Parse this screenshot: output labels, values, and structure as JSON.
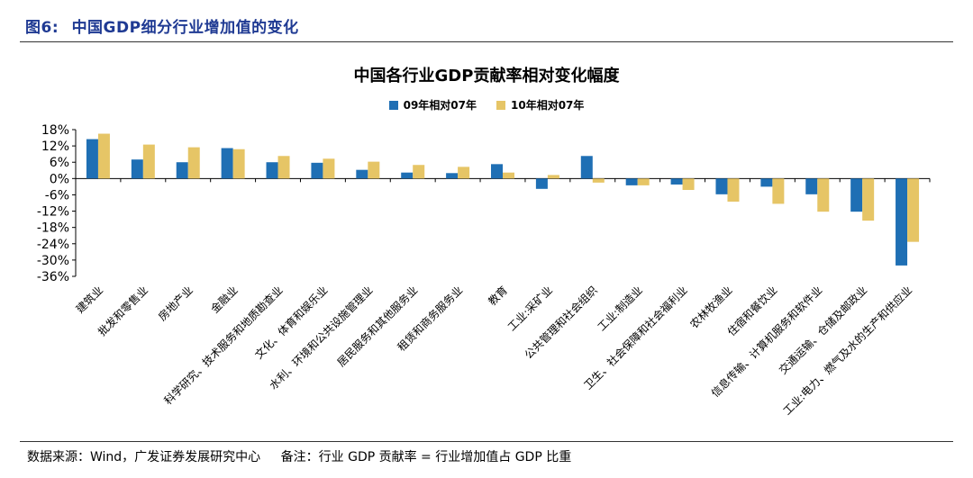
{
  "figure": {
    "label": "图6:",
    "title": "中国GDP细分行业增加值的变化"
  },
  "source_note": {
    "source": "数据来源：Wind，广发证券发展研究中心",
    "note": "备注：行业 GDP 贡献率 = 行业增加值占 GDP 比重"
  },
  "colors": {
    "series_1": "#1f6fb4",
    "series_2": "#e6c566",
    "axis": "#000000",
    "header_text": "#1f3a93"
  },
  "chart_data": {
    "type": "bar",
    "title": "中国各行业GDP贡献率相对变化幅度",
    "xlabel": "",
    "ylabel": "",
    "ylim": [
      -36,
      18
    ],
    "yticks": [
      "18%",
      "12%",
      "6%",
      "0%",
      "-6%",
      "-12%",
      "-18%",
      "-24%",
      "-30%",
      "-36%"
    ],
    "ytick_values": [
      18,
      12,
      6,
      0,
      -6,
      -12,
      -18,
      -24,
      -30,
      -36
    ],
    "legend_position": "top-center",
    "grid": false,
    "categories": [
      "建筑业",
      "批发和零售业",
      "房地产业",
      "金融业",
      "科学研究、技术服务和地质勘查业",
      "文化、体育和娱乐业",
      "水利、环境和公共设施管理业",
      "居民服务和其他服务业",
      "租赁和商务服务业",
      "教育",
      "工业:采矿业",
      "公共管理和社会组织",
      "工业:制造业",
      "卫生、社会保障和社会福利业",
      "农林牧渔业",
      "住宿和餐饮业",
      "信息传输、计算机服务和软件业",
      "交通运输、仓储及邮政业",
      "工业:电力、燃气及水的生产和供应业"
    ],
    "series": [
      {
        "name": "09年相对07年",
        "color": "#1f6fb4",
        "values": [
          14.5,
          7.0,
          6.0,
          11.2,
          6.0,
          5.8,
          3.2,
          2.2,
          2.0,
          5.3,
          -3.8,
          8.3,
          -2.5,
          -2.2,
          -5.8,
          -3.0,
          -5.8,
          -12.2,
          -32.0
        ]
      },
      {
        "name": "10年相对07年",
        "color": "#e6c566",
        "values": [
          16.5,
          12.5,
          11.5,
          10.8,
          8.3,
          7.3,
          6.2,
          5.0,
          4.3,
          2.2,
          1.3,
          -1.5,
          -2.5,
          -4.2,
          -8.5,
          -9.3,
          -12.2,
          -15.5,
          -23.3
        ]
      }
    ]
  }
}
